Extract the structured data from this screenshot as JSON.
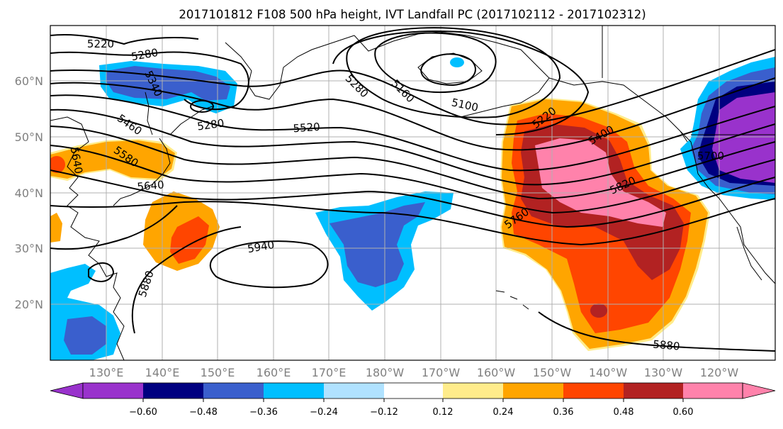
{
  "title": "2017101812 F108 500 hPa height, IVT Landfall PC (2017102112 - 2017102312)",
  "map": {
    "lat_labels": [
      "60°N",
      "50°N",
      "40°N",
      "30°N",
      "20°N"
    ],
    "lon_labels": [
      "130°E",
      "140°E",
      "150°E",
      "160°E",
      "170°E",
      "180°W",
      "170°W",
      "160°W",
      "150°W",
      "140°W",
      "130°W",
      "120°W"
    ],
    "contour_labels": [
      "5220",
      "5280",
      "5340",
      "5280",
      "5460",
      "5580",
      "5640",
      "5640",
      "5520",
      "5280",
      "5160",
      "5100",
      "5220",
      "5400",
      "5820",
      "5760",
      "5940",
      "5880",
      "5880",
      "5700"
    ]
  },
  "colorbar": {
    "ticks": [
      "−0.60",
      "−0.48",
      "−0.36",
      "−0.24",
      "−0.12",
      "0.12",
      "0.24",
      "0.36",
      "0.48",
      "0.60"
    ],
    "colors": [
      "#9932cc",
      "#000080",
      "#3a5fcd",
      "#00bfff",
      "#b0e2ff",
      "#ffffff",
      "#ffec8b",
      "#ffa500",
      "#ff4500",
      "#b22222",
      "#ff82ab"
    ]
  }
}
